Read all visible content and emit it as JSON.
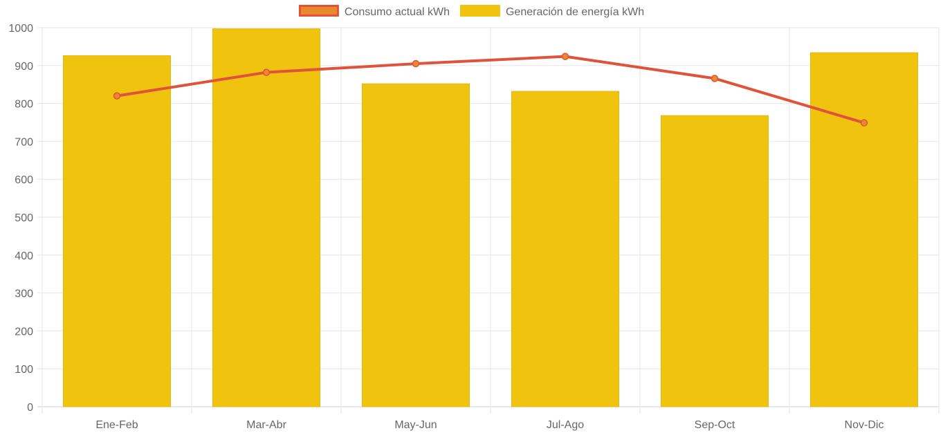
{
  "chart_data": {
    "type": "bar",
    "categories": [
      "Ene-Feb",
      "Mar-Abr",
      "May-Jun",
      "Jul-Ago",
      "Sep-Oct",
      "Nov-Dic"
    ],
    "series": [
      {
        "name": "Consumo actual kWh",
        "type": "line",
        "values": [
          820,
          882,
          905,
          924,
          866,
          749
        ],
        "color": "#e0533a",
        "point_color": "#e8892e"
      },
      {
        "name": "Generación de energía kWh",
        "type": "bar",
        "values": [
          926,
          997,
          852,
          832,
          768,
          934
        ],
        "color": "#f0c30f"
      }
    ],
    "ylim": [
      0,
      1000
    ],
    "yticks": [
      0,
      100,
      200,
      300,
      400,
      500,
      600,
      700,
      800,
      900,
      1000
    ],
    "grid": true,
    "legend_position": "top",
    "xlabel": "",
    "ylabel": "",
    "title": ""
  }
}
